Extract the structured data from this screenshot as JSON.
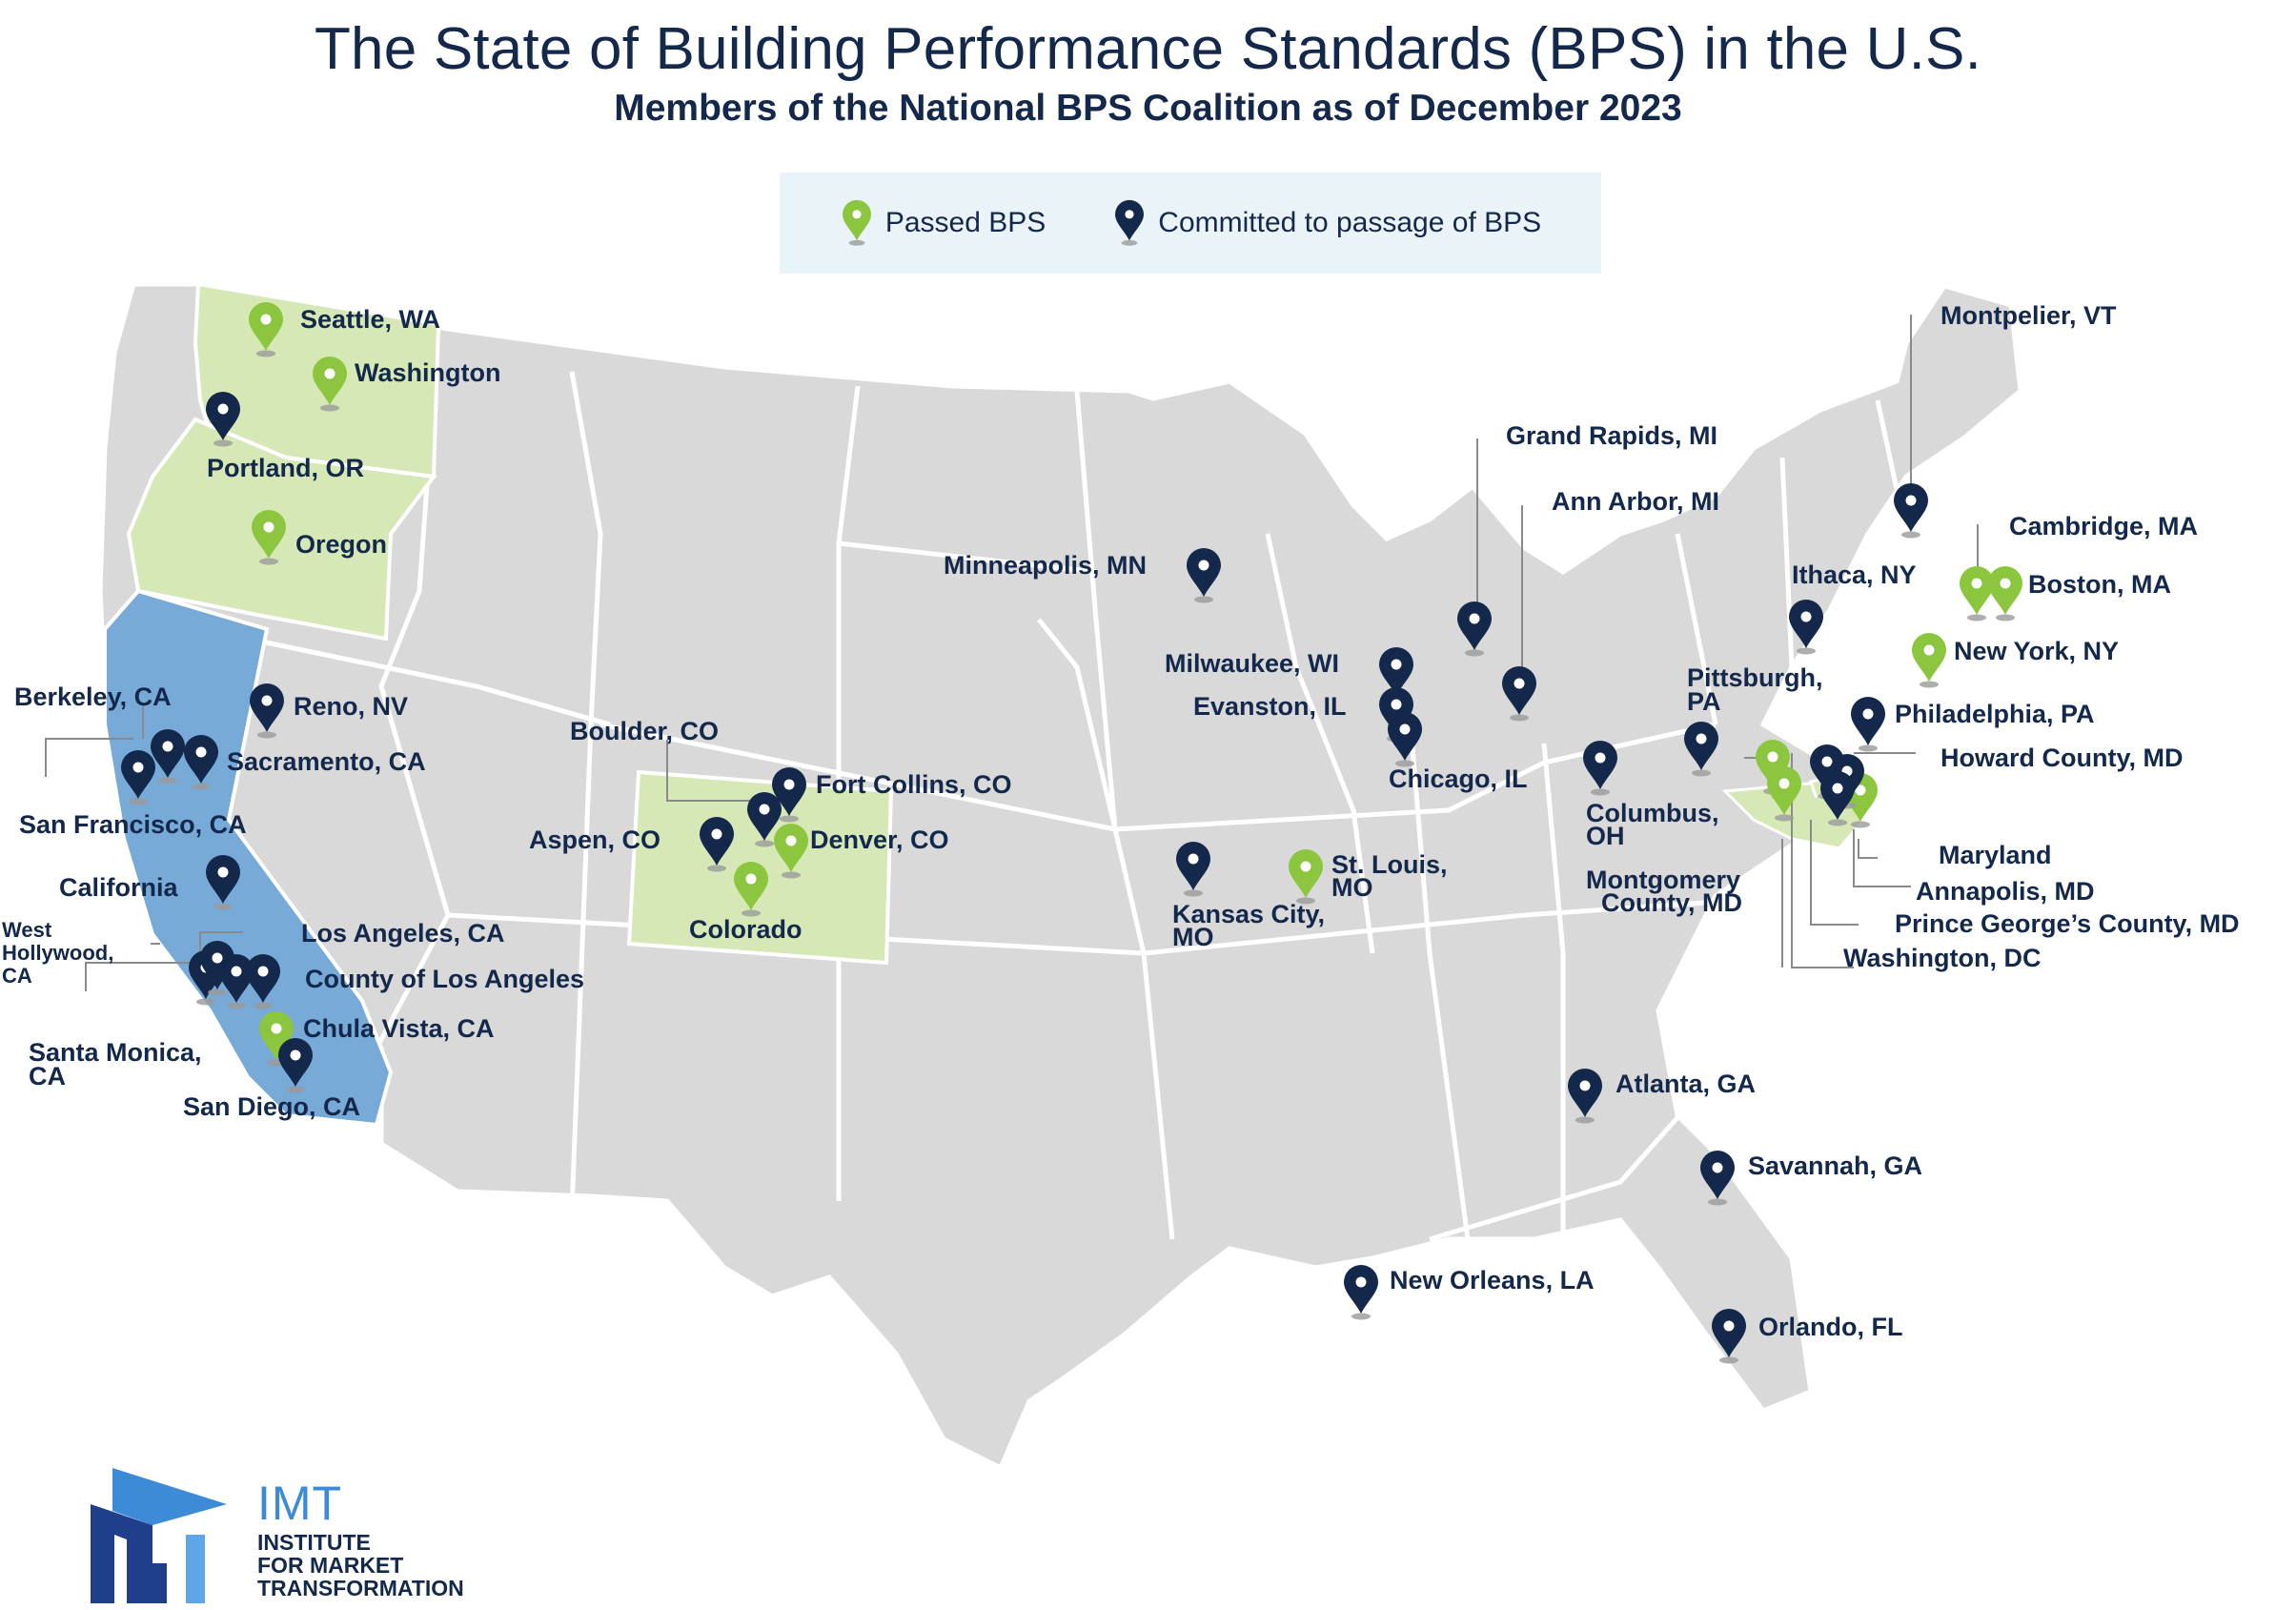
{
  "title": "The State of Building Performance Standards (BPS) in the U.S.",
  "subtitle": "Members of the National BPS Coalition as of December 2023",
  "legend": {
    "passed_label": "Passed BPS",
    "committed_label": "Committed to passage of BPS"
  },
  "colors": {
    "passed": "#8cc63f",
    "committed": "#14284b",
    "state_passed_fill": "#d5e8b6",
    "state_committed_fill": "#78aad8",
    "land": "#d9d9d9",
    "border": "#ffffff",
    "text": "#14284b"
  },
  "locations": [
    {
      "name": "seattle",
      "label": "Seattle, WA",
      "status": "passed"
    },
    {
      "name": "washington",
      "label": "Washington",
      "status": "passed"
    },
    {
      "name": "portland",
      "label": "Portland, OR",
      "status": "committed"
    },
    {
      "name": "oregon",
      "label": "Oregon",
      "status": "passed"
    },
    {
      "name": "berkeley",
      "label": "Berkeley, CA",
      "status": "committed"
    },
    {
      "name": "sacramento",
      "label": "Sacramento, CA",
      "status": "committed"
    },
    {
      "name": "san-francisco",
      "label": "San Francisco, CA",
      "status": "committed"
    },
    {
      "name": "reno",
      "label": "Reno, NV",
      "status": "committed"
    },
    {
      "name": "california",
      "label": "California",
      "status": "committed"
    },
    {
      "name": "west-hollywood",
      "label": "West Hollywood, CA",
      "status": "committed"
    },
    {
      "name": "los-angeles",
      "label": "Los Angeles, CA",
      "status": "committed"
    },
    {
      "name": "county-of-los-angeles",
      "label": "County of Los Angeles",
      "status": "committed"
    },
    {
      "name": "santa-monica",
      "label": "Santa Monica, CA",
      "status": "committed"
    },
    {
      "name": "chula-vista",
      "label": "Chula Vista, CA",
      "status": "passed"
    },
    {
      "name": "san-diego",
      "label": "San Diego, CA",
      "status": "committed"
    },
    {
      "name": "boulder",
      "label": "Boulder, CO",
      "status": "committed"
    },
    {
      "name": "fort-collins",
      "label": "Fort Collins, CO",
      "status": "committed"
    },
    {
      "name": "aspen",
      "label": "Aspen, CO",
      "status": "committed"
    },
    {
      "name": "denver",
      "label": "Denver, CO",
      "status": "passed"
    },
    {
      "name": "colorado",
      "label": "Colorado",
      "status": "passed"
    },
    {
      "name": "minneapolis",
      "label": "Minneapolis, MN",
      "status": "committed"
    },
    {
      "name": "kansas-city",
      "label": "Kansas City, MO",
      "status": "committed"
    },
    {
      "name": "st-louis",
      "label": "St. Louis, MO",
      "status": "passed"
    },
    {
      "name": "milwaukee",
      "label": "Milwaukee, WI",
      "status": "committed"
    },
    {
      "name": "evanston",
      "label": "Evanston, IL",
      "status": "committed"
    },
    {
      "name": "chicago",
      "label": "Chicago, IL",
      "status": "committed"
    },
    {
      "name": "grand-rapids",
      "label": "Grand Rapids, MI",
      "status": "committed"
    },
    {
      "name": "ann-arbor",
      "label": "Ann Arbor, MI",
      "status": "committed"
    },
    {
      "name": "columbus",
      "label": "Columbus, OH",
      "status": "committed"
    },
    {
      "name": "pittsburgh",
      "label": "Pittsburgh, PA",
      "status": "committed"
    },
    {
      "name": "new-orleans",
      "label": "New Orleans, LA",
      "status": "committed"
    },
    {
      "name": "atlanta",
      "label": "Atlanta, GA",
      "status": "committed"
    },
    {
      "name": "savannah",
      "label": "Savannah, GA",
      "status": "committed"
    },
    {
      "name": "orlando",
      "label": "Orlando, FL",
      "status": "committed"
    },
    {
      "name": "montpelier",
      "label": "Montpelier, VT",
      "status": "committed"
    },
    {
      "name": "cambridge",
      "label": "Cambridge, MA",
      "status": "passed"
    },
    {
      "name": "boston",
      "label": "Boston, MA",
      "status": "passed"
    },
    {
      "name": "ithaca",
      "label": "Ithaca, NY",
      "status": "committed"
    },
    {
      "name": "new-york",
      "label": "New York, NY",
      "status": "passed"
    },
    {
      "name": "philadelphia",
      "label": "Philadelphia, PA",
      "status": "committed"
    },
    {
      "name": "howard-county",
      "label": "Howard County, MD",
      "status": "committed"
    },
    {
      "name": "maryland",
      "label": "Maryland",
      "status": "passed"
    },
    {
      "name": "montgomery-county",
      "label": "Montgomery County, MD",
      "status": "passed"
    },
    {
      "name": "annapolis",
      "label": "Annapolis, MD",
      "status": "committed"
    },
    {
      "name": "prince-georges",
      "label": "Prince George’s County, MD",
      "status": "committed"
    },
    {
      "name": "washington-dc",
      "label": "Washington, DC",
      "status": "passed"
    }
  ],
  "labels": {
    "seattle": "Seattle, WA",
    "washington": "Washington",
    "portland": "Portland, OR",
    "oregon": "Oregon",
    "berkeley": "Berkeley, CA",
    "sacramento": "Sacramento, CA",
    "san_francisco": "San Francisco, CA",
    "reno": "Reno, NV",
    "california": "California",
    "west_hollywood_1": "West",
    "west_hollywood_2": "Hollywood,",
    "west_hollywood_3": "CA",
    "los_angeles": "Los Angeles, CA",
    "county_la": "County of Los Angeles",
    "santa_monica_1": "Santa Monica,",
    "santa_monica_2": "CA",
    "chula_vista": "Chula Vista, CA",
    "san_diego": "San Diego, CA",
    "boulder": "Boulder, CO",
    "fort_collins": "Fort Collins, CO",
    "aspen": "Aspen, CO",
    "denver": "Denver, CO",
    "colorado": "Colorado",
    "minneapolis": "Minneapolis, MN",
    "kansas_city_1": "Kansas City,",
    "kansas_city_2": "MO",
    "st_louis_1": "St. Louis,",
    "st_louis_2": "MO",
    "milwaukee": "Milwaukee, WI",
    "evanston": "Evanston, IL",
    "chicago": "Chicago, IL",
    "grand_rapids": "Grand Rapids, MI",
    "ann_arbor": "Ann Arbor, MI",
    "columbus_1": "Columbus,",
    "columbus_2": "OH",
    "pittsburgh_1": "Pittsburgh,",
    "pittsburgh_2": "PA",
    "new_orleans": "New Orleans, LA",
    "atlanta": "Atlanta, GA",
    "savannah": "Savannah, GA",
    "orlando": "Orlando, FL",
    "montpelier": "Montpelier, VT",
    "cambridge": "Cambridge, MA",
    "boston": "Boston, MA",
    "ithaca": "Ithaca, NY",
    "new_york": "New York, NY",
    "philadelphia": "Philadelphia, PA",
    "howard_county": "Howard County, MD",
    "maryland": "Maryland",
    "montgomery_1": "Montgomery",
    "montgomery_2": "County, MD",
    "annapolis": "Annapolis, MD",
    "prince_georges": "Prince George’s County, MD",
    "washington_dc": "Washington, DC"
  },
  "logo": {
    "abbr": "IMT",
    "line1": "INSTITUTE",
    "line2": "FOR MARKET",
    "line3": "TRANSFORMATION"
  }
}
